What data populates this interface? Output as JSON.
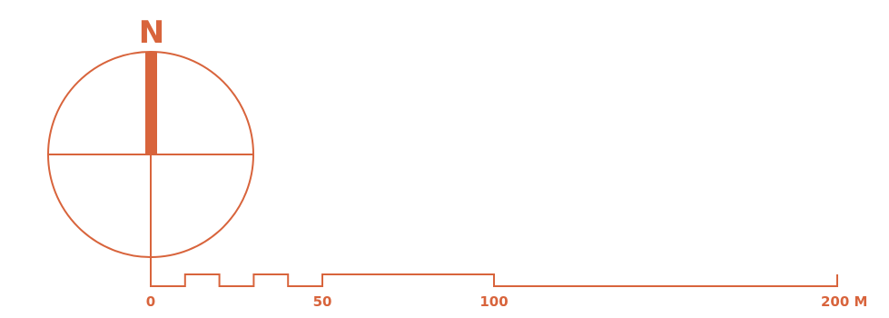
{
  "accent_color": "#d8643c",
  "north_arrow": {
    "label": "N"
  },
  "scale_bar": {
    "unit": "M",
    "max": 200,
    "segment_boundaries": [
      0,
      10,
      20,
      30,
      40,
      50,
      100,
      200
    ],
    "labels": [
      {
        "value": 0,
        "text": "0"
      },
      {
        "value": 50,
        "text": "50"
      },
      {
        "value": 100,
        "text": "100"
      },
      {
        "value": 200,
        "text": "200 M"
      }
    ]
  }
}
